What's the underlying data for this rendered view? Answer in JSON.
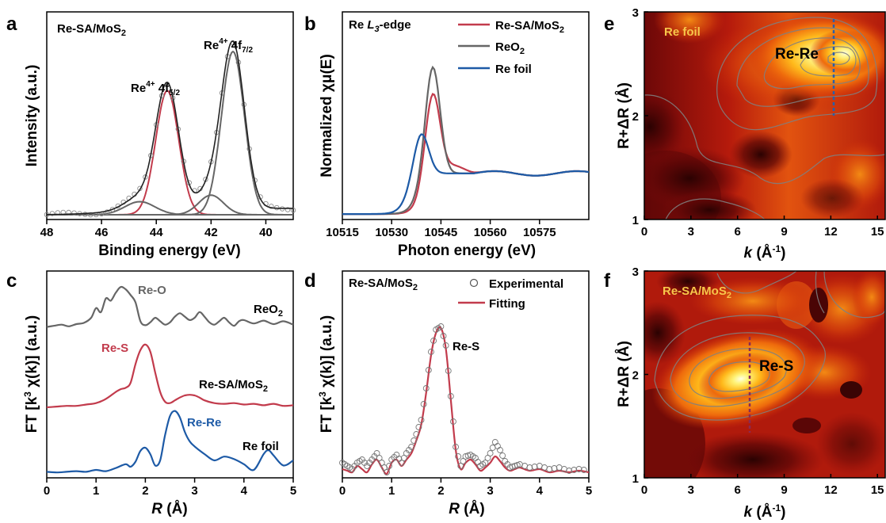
{
  "colors": {
    "red": "#c23b4c",
    "gray": "#666666",
    "blue": "#1d5aa6",
    "black": "#000000",
    "marker": "#8a8a8a"
  },
  "panels": {
    "a": {
      "letter": "a",
      "title": "Re-SA/MoS2",
      "xlabel": "Binding energy (eV)",
      "ylabel": "Intensity (a.u.)",
      "peak1": "Re4+ 4f5/2",
      "peak2": "Re4+ 4f7/2"
    },
    "b": {
      "letter": "b",
      "title": "Re L3-edge",
      "xlabel": "Photon energy (eV)",
      "ylabel": "Normalized χμ(E)"
    },
    "c": {
      "letter": "c",
      "xlabel": "R (Å)",
      "ylabel": "FT [k3 χ(k)] (a.u.)"
    },
    "d": {
      "letter": "d",
      "title": "Re-SA/MoS2",
      "xlabel": "R (Å)",
      "ylabel": "FT [k3 χ(k)] (a.u.)",
      "annotation": "Re-S"
    },
    "e": {
      "letter": "e",
      "title": "Re foil",
      "annotation": "Re-Re",
      "xlabel": "k (Å-1)",
      "ylabel": "R+ΔR (Å)"
    },
    "f": {
      "letter": "f",
      "title": "Re-SA/MoS2",
      "annotation": "Re-S",
      "xlabel": "k (Å-1)",
      "ylabel": "R+ΔR (Å)"
    }
  },
  "chart_data": [
    {
      "panel": "a",
      "type": "line",
      "title": "Re-SA/MoS2",
      "xlabel": "Binding energy (eV)",
      "ylabel": "Intensity (a.u.)",
      "xlim": [
        48,
        39
      ],
      "ylim": [
        0,
        1.0
      ],
      "x_ticks": [
        48,
        46,
        44,
        42,
        40
      ],
      "y_ticks_shown": false,
      "background": 0.04,
      "peaks": [
        {
          "name": "Re4+ 4f5/2",
          "center": 43.6,
          "height": 0.76,
          "sigma": 0.42,
          "color": "red"
        },
        {
          "name": "Re4+ 4f7/2",
          "center": 41.2,
          "height": 1.0,
          "sigma": 0.42,
          "color": "gray"
        },
        {
          "name": "",
          "center": 44.6,
          "height": 0.08,
          "sigma": 0.55,
          "color": "gray"
        },
        {
          "name": "",
          "center": 42.0,
          "height": 0.12,
          "sigma": 0.45,
          "color": "gray"
        }
      ],
      "annotations": [
        "Re4+ 4f5/2",
        "Re4+ 4f7/2"
      ]
    },
    {
      "panel": "b",
      "type": "line",
      "title": "Re L3-edge",
      "xlabel": "Photon energy (eV)",
      "ylabel": "Normalized χμ(E)",
      "xlim": [
        10515,
        10590
      ],
      "ylim": [
        0,
        1.0
      ],
      "x_ticks": [
        10515,
        10530,
        10545,
        10560,
        10575
      ],
      "y_ticks_shown": false,
      "series": [
        {
          "name": "Re-SA/MoS2",
          "color": "red",
          "edge": 10539,
          "peak_x": 10542.5,
          "peak": 0.82,
          "post": 0.26
        },
        {
          "name": "ReO2",
          "color": "gray",
          "edge": 10538,
          "peak_x": 10542.5,
          "peak": 0.99,
          "post": 0.26
        },
        {
          "name": "Re foil",
          "color": "blue",
          "edge": 10535,
          "peak_x": 10539,
          "peak": 0.55,
          "post": 0.27
        }
      ]
    },
    {
      "panel": "c",
      "type": "line",
      "xlabel": "R (Å)",
      "ylabel": "FT [k3 χ(k)] (a.u.)",
      "xlim": [
        0,
        5
      ],
      "x_ticks": [
        0,
        1,
        2,
        3,
        4,
        5
      ],
      "y_ticks_shown": false,
      "series": [
        {
          "name": "ReO2",
          "color": "gray",
          "path_label": "Re-O",
          "x": [
            0,
            0.15,
            0.3,
            0.45,
            0.6,
            0.75,
            0.9,
            1.0,
            1.1,
            1.2,
            1.3,
            1.4,
            1.5,
            1.6,
            1.7,
            1.8,
            1.9,
            2.0,
            2.1,
            2.2,
            2.3,
            2.4,
            2.5,
            2.6,
            2.7,
            2.8,
            2.9,
            3.0,
            3.1,
            3.2,
            3.3,
            3.4,
            3.5,
            3.6,
            3.7,
            3.8,
            3.9,
            4.0,
            4.2,
            4.4,
            4.6,
            4.8,
            5.0
          ],
          "y": [
            0.02,
            0.04,
            0.06,
            0.03,
            0.07,
            0.09,
            0.18,
            0.35,
            0.28,
            0.52,
            0.48,
            0.62,
            0.72,
            0.68,
            0.58,
            0.45,
            0.12,
            0.05,
            0.1,
            0.18,
            0.12,
            0.06,
            0.1,
            0.2,
            0.26,
            0.2,
            0.14,
            0.18,
            0.28,
            0.2,
            0.1,
            0.06,
            0.12,
            0.18,
            0.1,
            0.04,
            0.12,
            0.14,
            0.08,
            0.13,
            0.07,
            0.12,
            0.06
          ]
        },
        {
          "name": "Re-SA/MoS2",
          "color": "red",
          "path_label": "Re-S",
          "x": [
            0,
            0.2,
            0.4,
            0.6,
            0.8,
            1.0,
            1.2,
            1.4,
            1.5,
            1.6,
            1.7,
            1.8,
            1.9,
            2.0,
            2.1,
            2.2,
            2.3,
            2.4,
            2.5,
            2.6,
            2.7,
            2.8,
            2.9,
            3.0,
            3.1,
            3.2,
            3.4,
            3.6,
            3.8,
            4.0,
            4.2,
            4.4,
            4.6,
            4.8,
            5.0
          ],
          "y": [
            0.0,
            0.01,
            0.02,
            0.02,
            0.04,
            0.06,
            0.12,
            0.22,
            0.26,
            0.28,
            0.35,
            0.62,
            0.82,
            0.9,
            0.8,
            0.5,
            0.22,
            0.08,
            0.06,
            0.1,
            0.14,
            0.17,
            0.18,
            0.17,
            0.14,
            0.1,
            0.06,
            0.05,
            0.06,
            0.04,
            0.05,
            0.03,
            0.05,
            0.02,
            0.03
          ]
        },
        {
          "name": "Re foil",
          "color": "blue",
          "path_label": "Re-Re",
          "x": [
            0,
            0.2,
            0.4,
            0.6,
            0.8,
            1.0,
            1.2,
            1.4,
            1.6,
            1.7,
            1.8,
            1.9,
            2.0,
            2.1,
            2.2,
            2.3,
            2.4,
            2.5,
            2.6,
            2.7,
            2.8,
            2.9,
            3.0,
            3.2,
            3.4,
            3.6,
            3.8,
            4.0,
            4.2,
            4.4,
            4.5,
            4.6,
            4.8,
            5.0
          ],
          "y": [
            0.02,
            0.01,
            0.02,
            0.03,
            0.02,
            0.05,
            0.03,
            0.08,
            0.14,
            0.1,
            0.18,
            0.35,
            0.4,
            0.3,
            0.12,
            0.2,
            0.6,
            0.9,
            0.98,
            0.88,
            0.65,
            0.5,
            0.42,
            0.3,
            0.2,
            0.26,
            0.22,
            0.14,
            0.05,
            0.3,
            0.36,
            0.28,
            0.12,
            0.2
          ]
        }
      ],
      "annotations": [
        "Re-O",
        "ReO2",
        "Re-S",
        "Re-SA/MoS2",
        "Re-Re",
        "Re foil"
      ]
    },
    {
      "panel": "d",
      "type": "line",
      "title": "Re-SA/MoS2",
      "xlabel": "R (Å)",
      "ylabel": "FT [k3 χ(k)] (a.u.)",
      "xlim": [
        0,
        5
      ],
      "ylim": [
        0,
        1.0
      ],
      "x_ticks": [
        0,
        1,
        2,
        3,
        4,
        5
      ],
      "y_ticks_shown": false,
      "series": [
        {
          "name": "Experimental",
          "style": "open-circles",
          "color": "marker",
          "x": [
            0,
            0.1,
            0.2,
            0.3,
            0.4,
            0.5,
            0.6,
            0.7,
            0.8,
            0.9,
            1.0,
            1.1,
            1.2,
            1.3,
            1.4,
            1.5,
            1.6,
            1.7,
            1.8,
            1.9,
            2.0,
            2.1,
            2.2,
            2.3,
            2.4,
            2.5,
            2.6,
            2.7,
            2.8,
            2.9,
            3.0,
            3.1,
            3.2,
            3.3,
            3.4,
            3.5,
            3.6,
            3.8,
            4.0,
            4.2,
            4.4,
            4.6,
            4.8,
            5.0
          ],
          "y": [
            0.08,
            0.06,
            0.04,
            0.08,
            0.1,
            0.06,
            0.1,
            0.14,
            0.08,
            0.02,
            0.1,
            0.13,
            0.08,
            0.14,
            0.18,
            0.26,
            0.35,
            0.55,
            0.78,
            0.92,
            0.94,
            0.82,
            0.5,
            0.18,
            0.06,
            0.12,
            0.13,
            0.11,
            0.06,
            0.08,
            0.14,
            0.21,
            0.16,
            0.09,
            0.05,
            0.06,
            0.07,
            0.05,
            0.06,
            0.04,
            0.05,
            0.03,
            0.04,
            0.03
          ]
        },
        {
          "name": "Fitting",
          "style": "line",
          "color": "red",
          "x": [
            0,
            0.1,
            0.2,
            0.3,
            0.4,
            0.5,
            0.6,
            0.7,
            0.8,
            0.9,
            1.0,
            1.1,
            1.2,
            1.3,
            1.4,
            1.5,
            1.6,
            1.7,
            1.8,
            1.9,
            2.0,
            2.1,
            2.2,
            2.3,
            2.4,
            2.5,
            2.6,
            2.7,
            2.8,
            2.9,
            3.0,
            3.1,
            3.2,
            3.3,
            3.4,
            3.5,
            3.6,
            3.8,
            4.0,
            4.2,
            4.4,
            4.6,
            4.8,
            5.0
          ],
          "y": [
            0.04,
            0.03,
            0.02,
            0.06,
            0.04,
            0.02,
            0.07,
            0.1,
            0.05,
            0.01,
            0.08,
            0.1,
            0.06,
            0.1,
            0.14,
            0.22,
            0.32,
            0.52,
            0.76,
            0.9,
            0.93,
            0.8,
            0.48,
            0.16,
            0.04,
            0.08,
            0.1,
            0.07,
            0.03,
            0.05,
            0.08,
            0.12,
            0.09,
            0.05,
            0.03,
            0.04,
            0.05,
            0.03,
            0.04,
            0.02,
            0.03,
            0.02,
            0.03,
            0.02
          ]
        }
      ],
      "annotations": [
        "Re-S"
      ]
    },
    {
      "panel": "e",
      "type": "heatmap",
      "title": "Re foil",
      "xlabel": "k (Å-1)",
      "ylabel": "R+ΔR (Å)",
      "xlim": [
        0,
        15.5
      ],
      "ylim": [
        1,
        3
      ],
      "x_ticks": [
        0,
        3,
        6,
        9,
        12,
        15
      ],
      "y_ticks": [
        1,
        2,
        3
      ],
      "annotations": [
        "Re-Re"
      ],
      "maximum": {
        "k": 12.3,
        "R": 2.65
      },
      "marker_line_k": 12.2
    },
    {
      "panel": "f",
      "type": "heatmap",
      "title": "Re-SA/MoS2",
      "xlabel": "k (Å-1)",
      "ylabel": "R+ΔR (Å)",
      "xlim": [
        0,
        15.5
      ],
      "ylim": [
        1,
        3
      ],
      "x_ticks": [
        0,
        3,
        6,
        9,
        12,
        15
      ],
      "y_ticks": [
        1,
        2,
        3
      ],
      "annotations": [
        "Re-S"
      ],
      "maximum": {
        "k": 6.6,
        "R": 1.93
      },
      "marker_line_k": 6.6
    }
  ]
}
